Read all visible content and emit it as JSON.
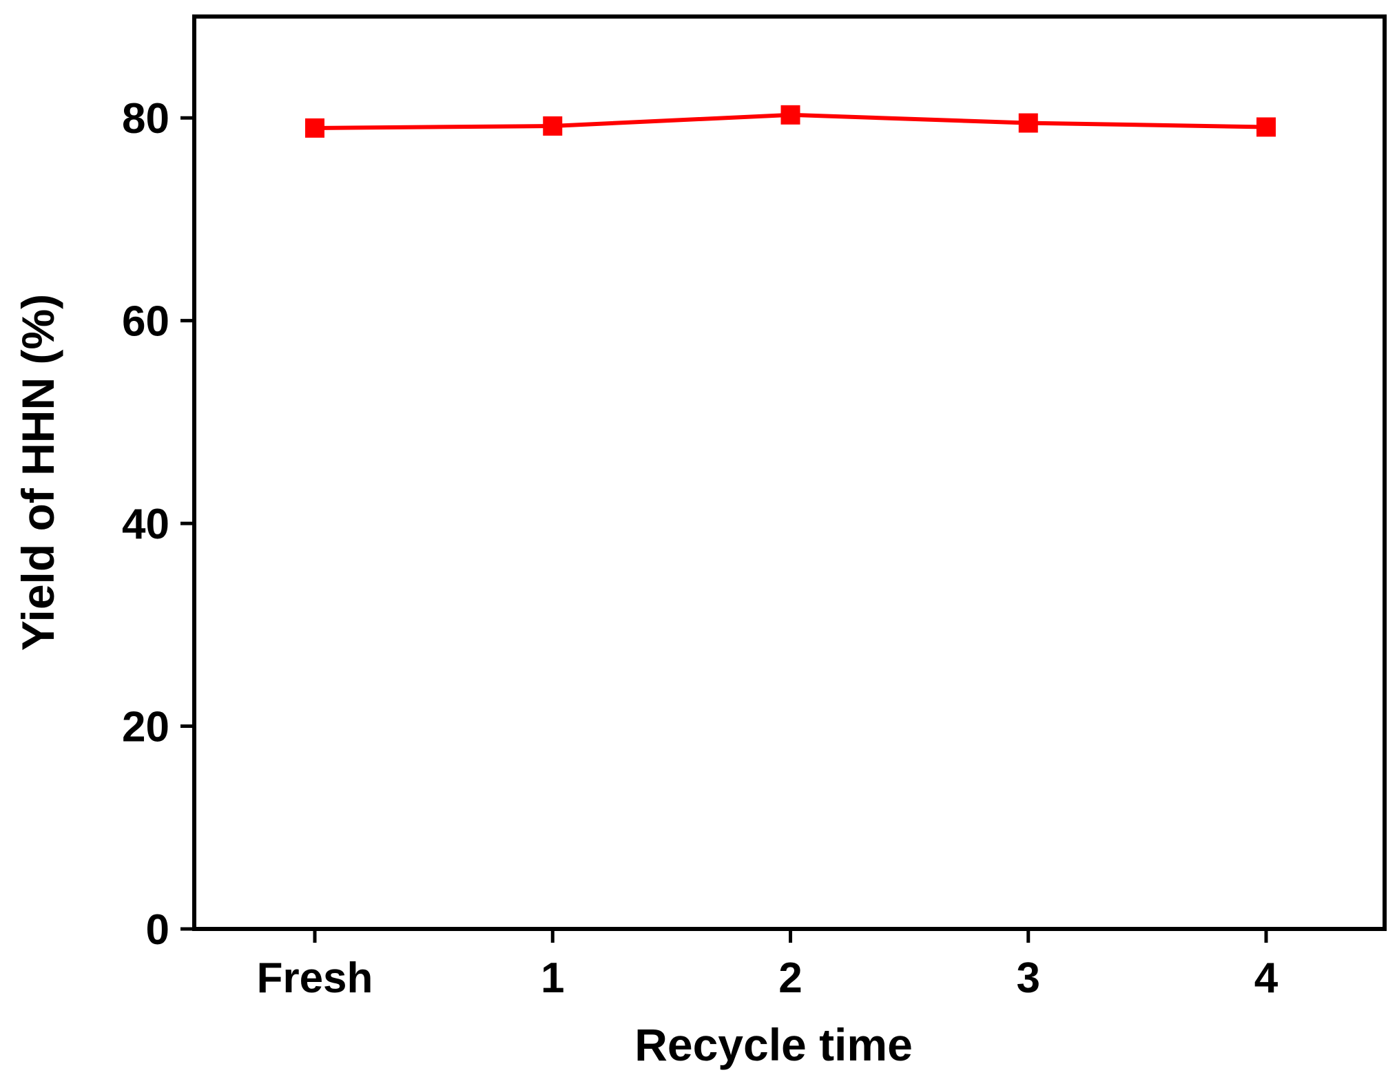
{
  "chart_data": {
    "type": "line",
    "title": "",
    "xlabel": "Recycle time",
    "ylabel": "Yield of HHN (%)",
    "categories": [
      "Fresh",
      "1",
      "2",
      "3",
      "4"
    ],
    "ylim": [
      0,
      90
    ],
    "yticks": [
      0,
      20,
      40,
      60,
      80
    ],
    "grid": false,
    "legend": "none",
    "series": [
      {
        "values": [
          79.0,
          79.2,
          80.3,
          79.5,
          79.1
        ],
        "color": "#ff0000",
        "marker": "square"
      }
    ]
  }
}
